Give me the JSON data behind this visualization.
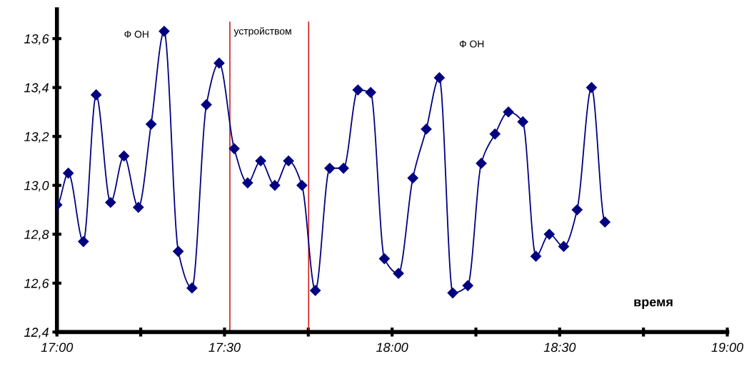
{
  "chart_data": {
    "type": "line",
    "x": [
      17.0,
      17.034,
      17.079,
      17.117,
      17.16,
      17.2,
      17.243,
      17.281,
      17.32,
      17.362,
      17.403,
      17.446,
      17.484,
      17.529,
      17.569,
      17.608,
      17.65,
      17.691,
      17.731,
      17.771,
      17.814,
      17.855,
      17.898,
      17.936,
      17.977,
      18.019,
      18.062,
      18.102,
      18.141,
      18.181,
      18.226,
      18.266,
      18.307,
      18.347,
      18.39,
      18.429,
      18.469,
      18.512,
      18.552,
      18.595,
      18.635
    ],
    "series": [
      {
        "color": "#000080",
        "values": [
          12.92,
          13.05,
          12.77,
          13.37,
          12.93,
          13.12,
          12.91,
          13.25,
          13.63,
          12.73,
          12.58,
          13.33,
          13.5,
          13.15,
          13.01,
          13.1,
          13.0,
          13.1,
          13.0,
          12.57,
          13.07,
          13.07,
          13.39,
          13.38,
          12.7,
          12.64,
          13.03,
          13.23,
          13.44,
          12.56,
          12.59,
          13.09,
          13.21,
          13.3,
          13.26,
          12.71,
          12.8,
          12.75,
          12.9,
          13.4,
          12.85
        ]
      }
    ],
    "xlim": [
      17,
      19
    ],
    "ylim": [
      12.4,
      13.72
    ],
    "xticks": [
      {
        "value": 17,
        "label": "17:00"
      },
      {
        "value": 17.25,
        "label": null
      },
      {
        "value": 17.5,
        "label": "17:30"
      },
      {
        "value": 17.75,
        "label": null
      },
      {
        "value": 18,
        "label": "18:00"
      },
      {
        "value": 18.25,
        "label": null
      },
      {
        "value": 18.5,
        "label": "18:30"
      },
      {
        "value": 18.75,
        "label": null
      },
      {
        "value": 19,
        "label": "19:00"
      }
    ],
    "yticks": [
      {
        "value": 12.4,
        "label": "12,4"
      },
      {
        "value": 12.6,
        "label": "12,6"
      },
      {
        "value": 12.8,
        "label": "12,8"
      },
      {
        "value": 13.0,
        "label": "13,0"
      },
      {
        "value": 13.2,
        "label": "13,2"
      },
      {
        "value": 13.4,
        "label": "13,4"
      },
      {
        "value": 13.6,
        "label": "13,6"
      }
    ],
    "ref_lines": [
      {
        "axis": "x",
        "value": 17.516,
        "color": "#d02020",
        "label": "устройством"
      },
      {
        "axis": "x",
        "value": 17.751,
        "color": "#d02020"
      }
    ],
    "annotations": [
      "Ф ОН",
      "Ф ОН",
      "время"
    ],
    "marker": "diamond",
    "grid": false,
    "legend": false
  }
}
